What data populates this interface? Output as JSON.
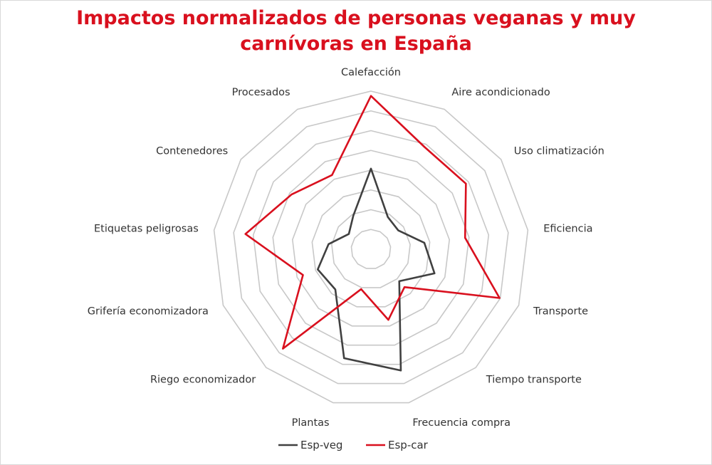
{
  "chart_data": {
    "type": "radar",
    "title_lines": [
      "Impactos normalizados de personas veganas y muy",
      "carnívoras en España"
    ],
    "axes": [
      "Calefacción",
      "Aire acondicionado",
      "Uso climatización",
      "Eficiencia",
      "Transporte",
      "Tiempo transporte",
      "Frecuencia compra",
      "Plantas",
      "Riego economizador",
      "Grifería economizadora",
      "Etiquetas peligrosas",
      "Contenedores",
      "Procesados"
    ],
    "rings": 8,
    "range": [
      0,
      1
    ],
    "series": [
      {
        "name": "Esp-veg",
        "color": "#404040",
        "values": [
          0.51,
          0.23,
          0.21,
          0.34,
          0.43,
          0.27,
          0.79,
          0.71,
          0.34,
          0.36,
          0.27,
          0.17,
          0.24
        ]
      },
      {
        "name": "Esp-car",
        "color": "#d9101e",
        "values": [
          0.97,
          0.73,
          0.73,
          0.6,
          0.87,
          0.32,
          0.46,
          0.26,
          0.84,
          0.46,
          0.8,
          0.61,
          0.53
        ]
      }
    ],
    "legend_position": "bottom",
    "grid": true
  }
}
